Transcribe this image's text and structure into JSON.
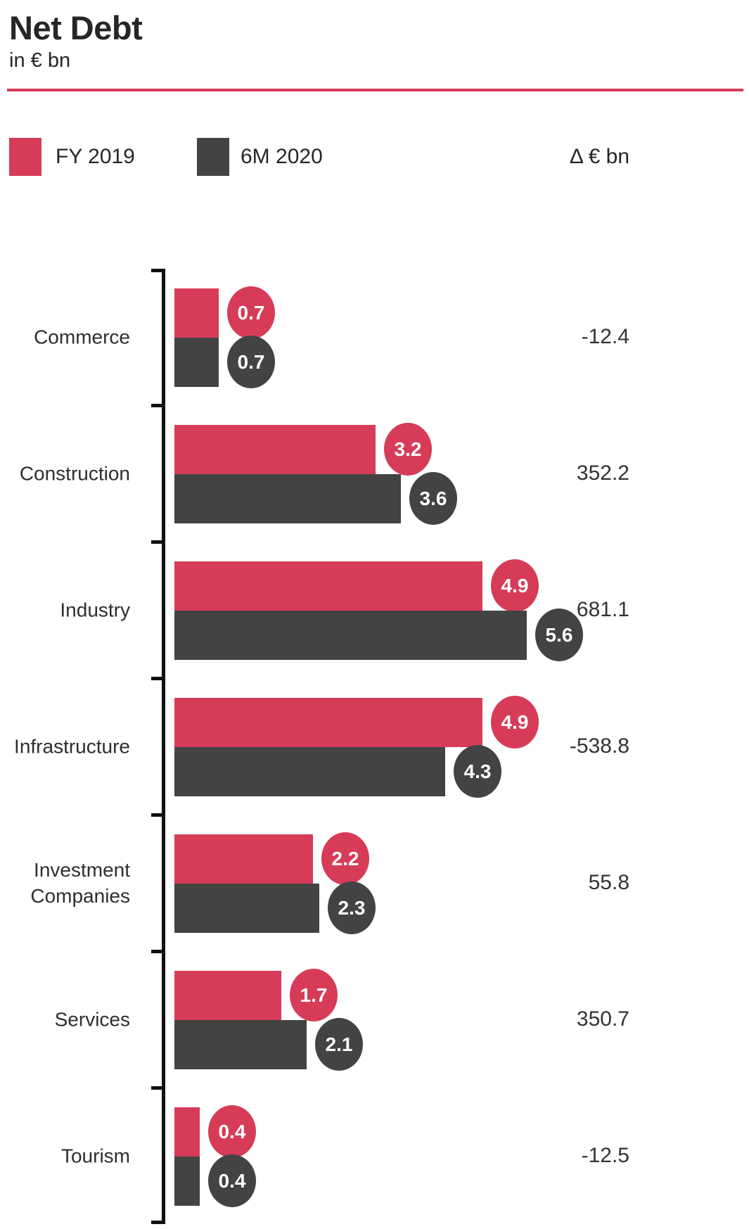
{
  "header": {
    "title": "Net Debt",
    "subtitle": "in € bn"
  },
  "legend": {
    "series1": "FY 2019",
    "series2": "6M 2020",
    "delta_header": "Δ € bn"
  },
  "colors": {
    "fy2019_red": "#d63c57",
    "6m2020_gray": "#434343",
    "accent_line_red": "#d63c57",
    "axis_black": "#111111"
  },
  "chart_data": {
    "type": "bar",
    "orientation": "horizontal",
    "title": "Net Debt",
    "subtitle_units": "in € bn",
    "categories": [
      "Commerce",
      "Construction",
      "Industry",
      "Infrastructure",
      "Investment Companies",
      "Services",
      "Tourism"
    ],
    "series": [
      {
        "name": "FY 2019",
        "color": "#d63c57",
        "values": [
          0.7,
          3.2,
          4.9,
          4.9,
          2.2,
          1.7,
          0.4
        ]
      },
      {
        "name": "6M 2020",
        "color": "#434343",
        "values": [
          0.7,
          3.6,
          5.6,
          4.3,
          2.3,
          2.1,
          0.4
        ]
      }
    ],
    "delta_column": {
      "label": "Δ € bn",
      "values": [
        -12.4,
        352.2,
        681.1,
        -538.8,
        55.8,
        350.7,
        -12.5
      ]
    },
    "x_max": 5.6,
    "value_decimals": 1,
    "legend_position": "top",
    "grid": false
  }
}
